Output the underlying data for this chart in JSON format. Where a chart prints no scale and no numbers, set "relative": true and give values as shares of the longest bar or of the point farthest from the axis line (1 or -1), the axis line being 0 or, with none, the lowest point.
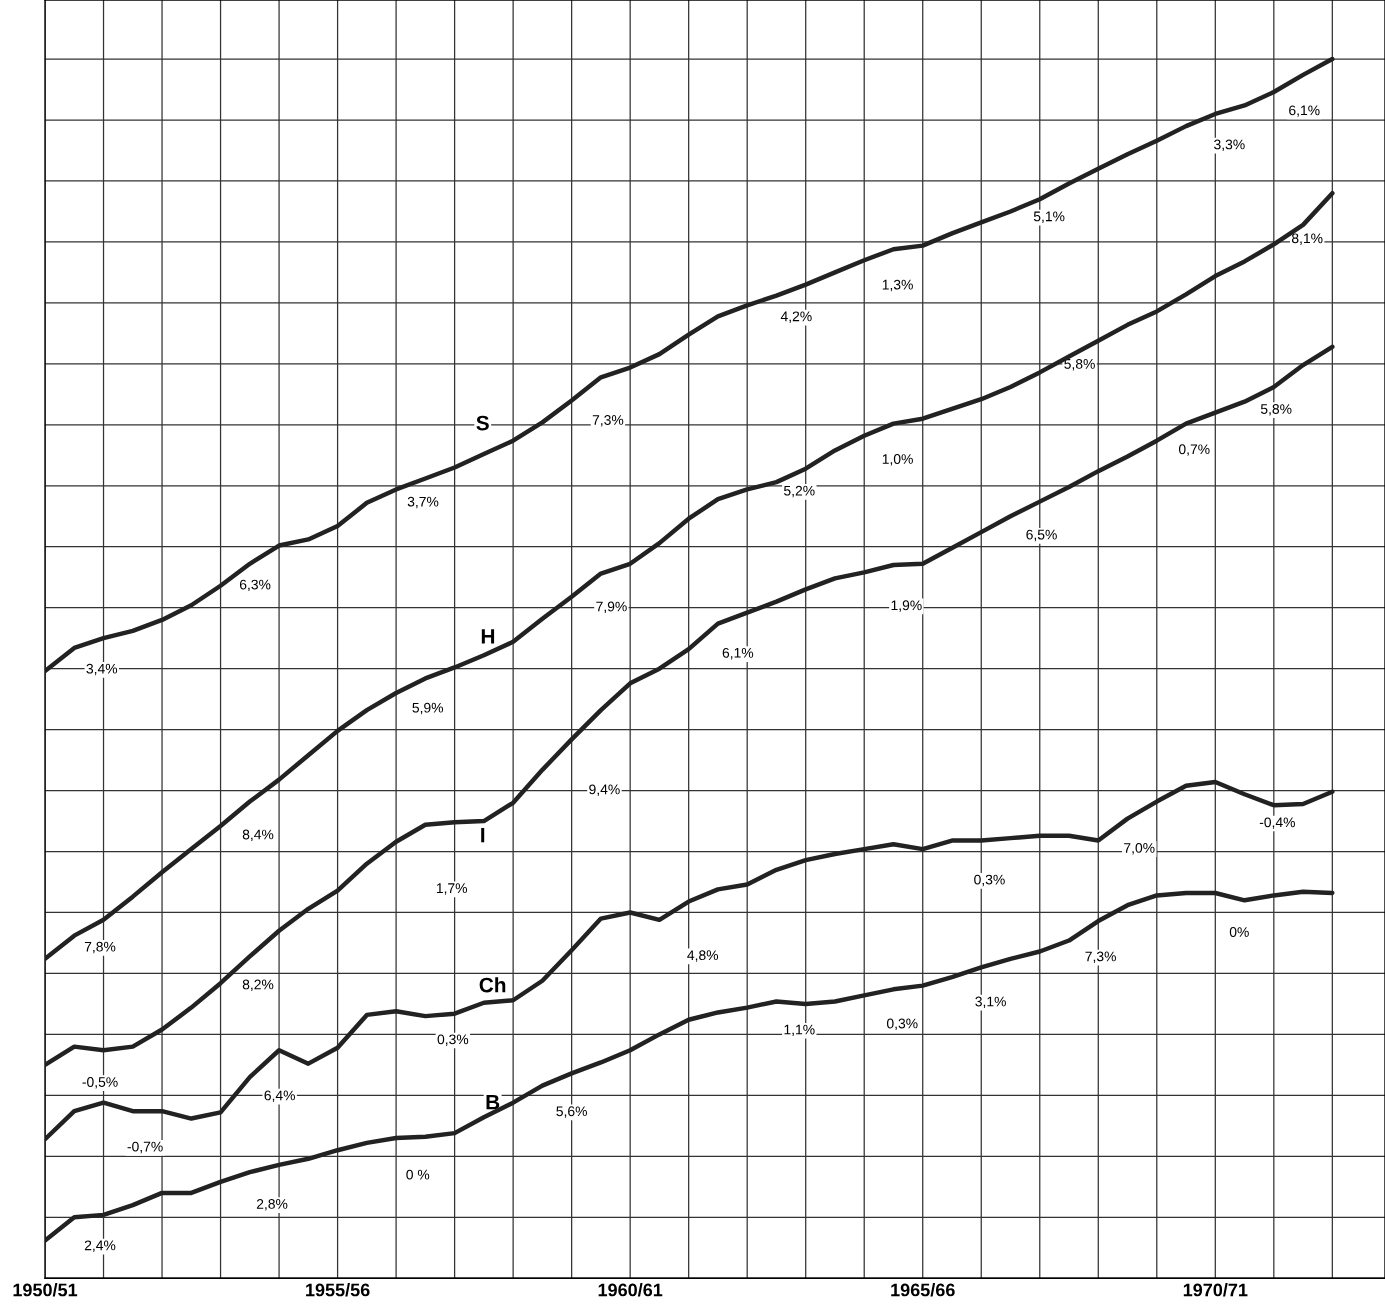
{
  "chart_data": {
    "type": "line",
    "relative": true,
    "grid": true,
    "legend": false,
    "line_style": "solid",
    "marker": "none",
    "tick_labels": "x",
    "categories": [
      "1950/51",
      null,
      null,
      null,
      null,
      null,
      null,
      null,
      null,
      null,
      "1955/56",
      null,
      null,
      null,
      null,
      null,
      null,
      null,
      null,
      null,
      "1960/61",
      null,
      null,
      null,
      null,
      null,
      null,
      null,
      null,
      null,
      "1965/66",
      null,
      null,
      null,
      null,
      null,
      null,
      null,
      null,
      null,
      "1970/71",
      null,
      null,
      null,
      null
    ],
    "series": [
      {
        "color": "#222222",
        "values": [
          0.498,
          0.517,
          0.525,
          0.531,
          0.54,
          0.552,
          0.568,
          0.586,
          0.601,
          0.606,
          0.617,
          0.636,
          0.647,
          0.656,
          0.665,
          0.676,
          0.687,
          0.702,
          0.72,
          0.739,
          0.747,
          0.758,
          0.774,
          0.789,
          0.798,
          0.806,
          0.815,
          0.825,
          0.835,
          0.844,
          0.847,
          0.857,
          0.866,
          0.875,
          0.885,
          0.898,
          0.91,
          0.922,
          0.933,
          0.945,
          0.955,
          0.962,
          0.973,
          0.987,
          1.0
        ]
      },
      {
        "color": "#222222",
        "values": [
          0.262,
          0.281,
          0.294,
          0.313,
          0.333,
          0.352,
          0.371,
          0.391,
          0.409,
          0.429,
          0.449,
          0.466,
          0.48,
          0.492,
          0.501,
          0.511,
          0.522,
          0.541,
          0.559,
          0.578,
          0.586,
          0.603,
          0.623,
          0.639,
          0.647,
          0.653,
          0.664,
          0.679,
          0.691,
          0.701,
          0.705,
          0.713,
          0.721,
          0.731,
          0.743,
          0.756,
          0.769,
          0.782,
          0.793,
          0.807,
          0.822,
          0.834,
          0.848,
          0.864,
          0.89
        ]
      },
      {
        "color": "#222222",
        "values": [
          0.175,
          0.19,
          0.187,
          0.19,
          0.204,
          0.222,
          0.242,
          0.264,
          0.285,
          0.303,
          0.318,
          0.34,
          0.358,
          0.372,
          0.374,
          0.375,
          0.39,
          0.417,
          0.442,
          0.466,
          0.488,
          0.5,
          0.516,
          0.537,
          0.546,
          0.555,
          0.565,
          0.574,
          0.579,
          0.585,
          0.586,
          0.599,
          0.612,
          0.625,
          0.637,
          0.649,
          0.662,
          0.674,
          0.687,
          0.701,
          0.71,
          0.719,
          0.731,
          0.749,
          0.764
        ]
      },
      {
        "color": "#222222",
        "values": [
          0.114,
          0.137,
          0.144,
          0.137,
          0.137,
          0.131,
          0.136,
          0.165,
          0.187,
          0.176,
          0.189,
          0.216,
          0.219,
          0.215,
          0.217,
          0.226,
          0.228,
          0.244,
          0.269,
          0.295,
          0.3,
          0.294,
          0.309,
          0.319,
          0.323,
          0.335,
          0.343,
          0.348,
          0.352,
          0.356,
          0.352,
          0.359,
          0.359,
          0.361,
          0.363,
          0.363,
          0.359,
          0.377,
          0.391,
          0.404,
          0.407,
          0.397,
          0.388,
          0.389,
          0.399
        ]
      },
      {
        "color": "#222222",
        "values": [
          0.031,
          0.05,
          0.052,
          0.06,
          0.07,
          0.07,
          0.079,
          0.087,
          0.093,
          0.098,
          0.105,
          0.111,
          0.115,
          0.116,
          0.119,
          0.132,
          0.144,
          0.158,
          0.168,
          0.177,
          0.187,
          0.2,
          0.212,
          0.218,
          0.222,
          0.227,
          0.225,
          0.227,
          0.232,
          0.237,
          0.24,
          0.247,
          0.255,
          0.262,
          0.268,
          0.277,
          0.293,
          0.306,
          0.314,
          0.316,
          0.316,
          0.31,
          0.314,
          0.317,
          0.316
        ]
      }
    ],
    "annotations": [
      "S",
      "H",
      "I",
      "Ch",
      "B",
      "3,4%",
      "6,3%",
      "3,7%",
      "7,3%",
      "4,2%",
      "1,3%",
      "5,1%",
      "3,3%",
      "6,1%",
      "7,8%",
      "8,4%",
      "5,9%",
      "7,9%",
      "5,2%",
      "1,0%",
      "5,8%",
      "8,1%",
      "-0,5%",
      "8,2%",
      "1,7%",
      "9,4%",
      "6,1%",
      "1,9%",
      "6,5%",
      "0,7%",
      "5,8%",
      "-0,7%",
      "6,4%",
      "0,3%",
      "4,8%",
      "0,3%",
      "7,0%",
      "-0,4%",
      "2,4%",
      "2,8%",
      "0 %",
      "5,6%",
      "1,1%",
      "0,3%",
      "3,1%",
      "7,3%",
      "0%"
    ]
  }
}
